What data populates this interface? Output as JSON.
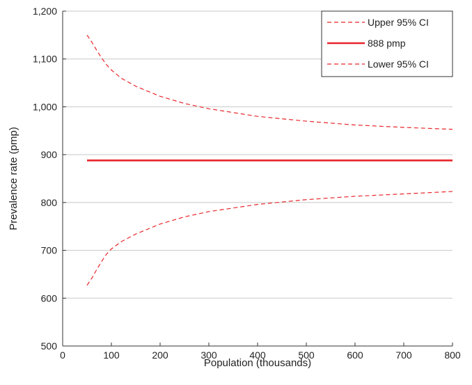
{
  "chart_data": {
    "type": "line",
    "xlabel": "Population (thousands)",
    "ylabel": "Prevalence rate (pmp)",
    "xlim": [
      0,
      800
    ],
    "ylim": [
      500,
      1200
    ],
    "x_ticks": [
      0,
      100,
      200,
      300,
      400,
      500,
      600,
      700,
      800
    ],
    "x_tick_labels": [
      "0",
      "100",
      "200",
      "300",
      "400",
      "500",
      "600",
      "700",
      "800"
    ],
    "y_ticks": [
      500,
      600,
      700,
      800,
      900,
      1000,
      1100,
      1200
    ],
    "y_tick_labels": [
      "500",
      "600",
      "700",
      "800",
      "900",
      "1,000",
      "1,100",
      "1,200"
    ],
    "grid": "horizontal",
    "legend_position": "top-right",
    "colors": {
      "series": "#e8252a",
      "grid": "#c8c8c8",
      "axis": "#333333"
    },
    "series": [
      {
        "name": "Upper 95% CI",
        "style": "dashed",
        "x": [
          50,
          60,
          70,
          80,
          90,
          100,
          120,
          150,
          200,
          250,
          300,
          400,
          500,
          600,
          700,
          800
        ],
        "y": [
          1150,
          1135,
          1118,
          1102,
          1088,
          1077,
          1060,
          1043,
          1022,
          1007,
          996,
          980,
          970,
          962,
          957,
          953
        ]
      },
      {
        "name": "888 pmp",
        "style": "solid",
        "x": [
          50,
          800
        ],
        "y": [
          888,
          888
        ]
      },
      {
        "name": "Lower 95% CI",
        "style": "dashed",
        "x": [
          50,
          60,
          70,
          80,
          90,
          100,
          120,
          150,
          200,
          250,
          300,
          400,
          500,
          600,
          700,
          800
        ],
        "y": [
          627,
          642,
          660,
          677,
          692,
          703,
          718,
          734,
          755,
          770,
          781,
          796,
          806,
          813,
          818,
          823
        ]
      }
    ]
  }
}
